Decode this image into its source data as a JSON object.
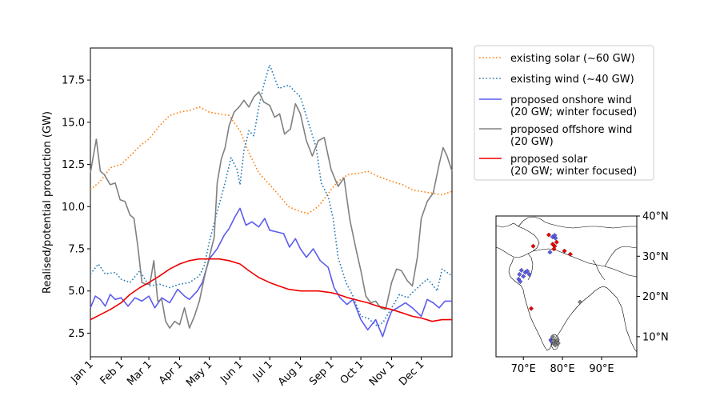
{
  "chart_data": [
    {
      "type": "line",
      "title": "",
      "xlabel": "",
      "ylabel": "Realised/potential production (GW)",
      "x_ticks": [
        "Jan 1",
        "Feb 1",
        "Mar 1",
        "Apr 1",
        "May 1",
        "Jun 1",
        "Jul 1",
        "Aug 1",
        "Sep 1",
        "Oct 1",
        "Nov 1",
        "Dec 1"
      ],
      "x_tick_days": [
        0,
        31,
        59,
        90,
        120,
        151,
        181,
        212,
        243,
        273,
        304,
        334
      ],
      "xlim_days": [
        0,
        365
      ],
      "ylim": [
        1.1,
        19.4
      ],
      "y_ticks": [
        2.5,
        5.0,
        7.5,
        10.0,
        12.5,
        15.0,
        17.5
      ],
      "y_tick_labels": [
        "2.5",
        "5.0",
        "7.5",
        "10.0",
        "12.5",
        "15.0",
        "17.5"
      ],
      "grid": false,
      "legend_position": "outside-top-right",
      "series": [
        {
          "name": "existing solar (∼60 GW)",
          "color": "#ff7f0e",
          "style": "dotted",
          "x": [
            0,
            10,
            20,
            31,
            40,
            50,
            59,
            70,
            80,
            90,
            100,
            110,
            120,
            130,
            140,
            151,
            160,
            170,
            181,
            190,
            200,
            212,
            220,
            230,
            243,
            250,
            260,
            273,
            280,
            290,
            304,
            315,
            325,
            334,
            345,
            355,
            365
          ],
          "y": [
            11.0,
            11.5,
            12.3,
            12.5,
            13.0,
            13.6,
            14.0,
            14.8,
            15.4,
            15.6,
            15.7,
            15.9,
            15.6,
            15.5,
            15.4,
            14.5,
            13.2,
            12.0,
            11.3,
            10.7,
            10.0,
            9.7,
            9.6,
            10.0,
            11.0,
            11.5,
            11.9,
            12.0,
            12.1,
            11.8,
            11.5,
            11.3,
            11.0,
            10.9,
            10.8,
            10.7,
            10.9
          ]
        },
        {
          "name": "existing wind (∼40 GW)",
          "color": "#1f77b4",
          "style": "dotted",
          "x": [
            0,
            8,
            15,
            25,
            31,
            40,
            50,
            59,
            70,
            80,
            90,
            100,
            110,
            115,
            120,
            127,
            135,
            142,
            148,
            151,
            155,
            160,
            165,
            170,
            175,
            181,
            190,
            200,
            212,
            220,
            228,
            233,
            240,
            245,
            250,
            258,
            265,
            273,
            280,
            290,
            296,
            304,
            312,
            320,
            325,
            334,
            340,
            345,
            350,
            355,
            360,
            365
          ],
          "y": [
            6.0,
            6.6,
            6.0,
            6.1,
            5.7,
            5.5,
            6.2,
            5.3,
            5.4,
            5.2,
            5.4,
            5.5,
            5.9,
            6.5,
            7.9,
            9.5,
            11.2,
            12.9,
            12.2,
            11.3,
            13.3,
            14.5,
            14.2,
            15.9,
            17.2,
            18.4,
            17.0,
            17.2,
            16.5,
            15.0,
            13.5,
            11.4,
            10.6,
            9.3,
            7.0,
            5.5,
            4.7,
            3.5,
            3.4,
            2.9,
            3.2,
            4.0,
            4.8,
            4.6,
            4.9,
            5.4,
            5.7,
            5.4,
            5.0,
            6.3,
            6.1,
            5.9
          ]
        },
        {
          "name": "proposed onshore wind\n(20 GW; winter focused)",
          "color": "#5b5bf0",
          "style": "solid",
          "x": [
            0,
            5,
            10,
            15,
            20,
            25,
            31,
            38,
            45,
            52,
            59,
            65,
            72,
            80,
            88,
            95,
            100,
            108,
            113,
            120,
            128,
            135,
            140,
            146,
            151,
            157,
            163,
            170,
            176,
            181,
            188,
            195,
            201,
            207,
            212,
            218,
            225,
            232,
            240,
            246,
            252,
            259,
            265,
            273,
            280,
            288,
            295,
            300,
            304,
            310,
            318,
            325,
            334,
            340,
            346,
            352,
            358,
            365
          ],
          "y": [
            4.0,
            4.7,
            4.5,
            4.1,
            4.8,
            4.5,
            4.6,
            4.1,
            4.6,
            4.4,
            4.7,
            4.0,
            4.6,
            4.3,
            5.1,
            4.7,
            4.5,
            5.0,
            5.5,
            6.9,
            7.5,
            8.3,
            8.7,
            9.4,
            9.9,
            8.9,
            9.1,
            8.8,
            9.3,
            8.6,
            8.5,
            8.4,
            7.6,
            8.1,
            7.5,
            7.0,
            7.5,
            6.8,
            6.4,
            5.2,
            4.6,
            4.2,
            4.5,
            3.3,
            2.7,
            3.3,
            2.3,
            3.2,
            3.8,
            4.0,
            4.3,
            4.0,
            3.5,
            4.5,
            4.3,
            4.0,
            4.4,
            4.4
          ]
        },
        {
          "name": "proposed offshore wind\n(20 GW)",
          "color": "#808080",
          "style": "solid",
          "x": [
            0,
            3,
            6,
            10,
            14,
            20,
            25,
            30,
            35,
            40,
            44,
            48,
            52,
            56,
            60,
            64,
            68,
            72,
            76,
            80,
            85,
            90,
            95,
            100,
            105,
            110,
            115,
            120,
            125,
            128,
            132,
            136,
            140,
            145,
            150,
            155,
            160,
            165,
            170,
            175,
            181,
            186,
            191,
            196,
            202,
            207,
            212,
            218,
            224,
            230,
            236,
            243,
            250,
            256,
            262,
            268,
            273,
            278,
            283,
            288,
            293,
            298,
            304,
            309,
            314,
            320,
            325,
            330,
            334,
            340,
            346,
            352,
            356,
            360,
            365
          ],
          "y": [
            12.0,
            13.0,
            14.0,
            12.1,
            11.9,
            11.3,
            11.4,
            10.4,
            10.3,
            9.5,
            9.3,
            7.6,
            5.5,
            5.4,
            5.4,
            6.8,
            4.4,
            4.5,
            3.2,
            2.8,
            3.2,
            3.0,
            4.0,
            2.8,
            3.5,
            4.4,
            5.8,
            7.0,
            8.2,
            11.4,
            12.8,
            13.5,
            14.8,
            15.6,
            15.9,
            16.3,
            15.9,
            16.5,
            16.8,
            16.2,
            16.0,
            15.3,
            15.5,
            14.3,
            14.6,
            16.1,
            15.5,
            13.9,
            13.0,
            13.9,
            14.1,
            12.2,
            11.2,
            11.7,
            9.2,
            7.5,
            6.2,
            4.7,
            4.3,
            4.4,
            4.0,
            3.9,
            5.5,
            6.3,
            6.2,
            5.6,
            5.3,
            7.0,
            9.3,
            10.3,
            10.8,
            12.5,
            13.5,
            13.0,
            12.1
          ]
        },
        {
          "name": "proposed solar\n(20 GW; winter focused)",
          "color": "#ee0000",
          "style": "solid",
          "x": [
            0,
            10,
            20,
            31,
            40,
            50,
            59,
            70,
            80,
            90,
            100,
            110,
            120,
            130,
            140,
            151,
            160,
            170,
            181,
            190,
            200,
            212,
            220,
            230,
            243,
            250,
            260,
            273,
            280,
            290,
            304,
            315,
            325,
            334,
            345,
            355,
            365
          ],
          "y": [
            3.3,
            3.6,
            3.9,
            4.3,
            4.8,
            5.2,
            5.5,
            5.9,
            6.3,
            6.6,
            6.8,
            6.9,
            6.9,
            6.9,
            6.8,
            6.6,
            6.2,
            5.8,
            5.5,
            5.3,
            5.1,
            5.0,
            5.0,
            5.0,
            4.9,
            4.8,
            4.6,
            4.4,
            4.3,
            4.1,
            3.9,
            3.7,
            3.5,
            3.4,
            3.2,
            3.3,
            3.3
          ]
        }
      ]
    },
    {
      "type": "scatter",
      "title": "",
      "xlabel": "",
      "ylabel": "",
      "xlim": [
        63,
        99
      ],
      "ylim": [
        5,
        40
      ],
      "x_ticks": [
        70,
        80,
        90
      ],
      "x_tick_labels": [
        "70°E",
        "80°E",
        "90°E"
      ],
      "y_ticks": [
        10,
        20,
        30,
        40
      ],
      "y_tick_labels": [
        "10°N",
        "20°N",
        "30°N",
        "40°N"
      ],
      "series": [
        {
          "name": "proposed onshore wind",
          "color": "#5b5bf0",
          "points": [
            [
              69.5,
              26.5
            ],
            [
              70.5,
              26.0
            ],
            [
              71.5,
              25.5
            ],
            [
              70.0,
              25.0
            ],
            [
              69.0,
              25.5
            ],
            [
              71.0,
              26.3
            ],
            [
              68.8,
              24.3
            ],
            [
              69.2,
              23.7
            ],
            [
              77.5,
              34.8
            ],
            [
              78.2,
              34.5
            ],
            [
              78.0,
              35.2
            ],
            [
              76.8,
              31.0
            ],
            [
              77.0,
              9.2
            ],
            [
              77.2,
              8.8
            ]
          ]
        },
        {
          "name": "proposed offshore wind",
          "color": "#808080",
          "points": [
            [
              78.0,
              9.0
            ],
            [
              78.5,
              8.6
            ],
            [
              77.8,
              8.2
            ],
            [
              78.7,
              9.2
            ],
            [
              78.2,
              7.9
            ],
            [
              77.6,
              8.9
            ],
            [
              78.9,
              8.4
            ],
            [
              84.5,
              18.6
            ],
            [
              77.5,
              10.0
            ]
          ]
        },
        {
          "name": "proposed solar",
          "color": "#ee0000",
          "points": [
            [
              76.5,
              35.3
            ],
            [
              82.0,
              30.5
            ],
            [
              80.5,
              31.3
            ],
            [
              72.5,
              32.5
            ],
            [
              72.0,
              17.0
            ],
            [
              77.5,
              33.0
            ],
            [
              78.0,
              32.5
            ],
            [
              77.8,
              31.8
            ],
            [
              78.5,
              33.5
            ]
          ]
        }
      ]
    }
  ]
}
